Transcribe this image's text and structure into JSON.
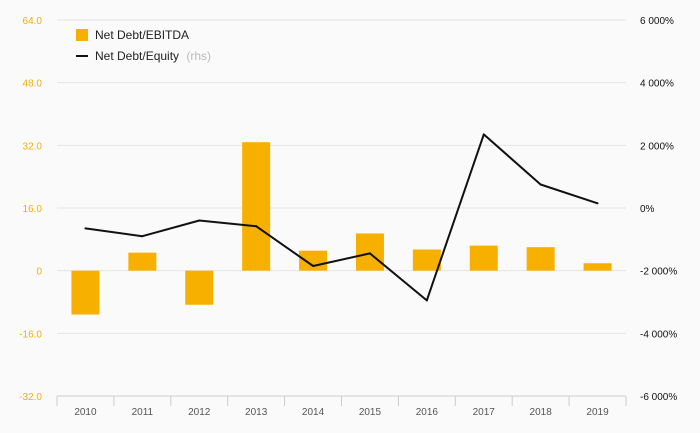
{
  "chart_data": {
    "type": "bar",
    "categories": [
      "2010",
      "2011",
      "2012",
      "2013",
      "2014",
      "2015",
      "2016",
      "2017",
      "2018",
      "2019"
    ],
    "series": [
      {
        "name": "Net Debt/EBITDA",
        "type": "bar",
        "axis": "left",
        "color": "#f8b000",
        "values": [
          -11.2,
          4.6,
          -8.7,
          32.8,
          5.1,
          9.5,
          5.4,
          6.4,
          6.0,
          1.9
        ]
      },
      {
        "name": "Net Debt/Equity",
        "name_suffix": "(rhs)",
        "type": "line",
        "axis": "right",
        "color": "#111111",
        "values": [
          -650,
          -900,
          -400,
          -580,
          -1850,
          -1450,
          -2950,
          2350,
          750,
          150
        ]
      }
    ],
    "y_left": {
      "ylim": [
        -32,
        64
      ],
      "ticks": [
        -32,
        -16,
        0,
        16,
        32,
        48,
        64
      ],
      "tick_labels": [
        "-32.0",
        "-16.0",
        "0",
        "16.0",
        "32.0",
        "48.0",
        "64.0"
      ]
    },
    "y_right": {
      "ylim": [
        -6000,
        6000
      ],
      "ticks": [
        -6000,
        -4000,
        -2000,
        0,
        2000,
        4000,
        6000
      ],
      "tick_labels": [
        "-6 000%",
        "-4 000%",
        "-2 000%",
        "0%",
        "2 000%",
        "4 000%",
        "6 000%"
      ]
    },
    "grid": true,
    "legend": "top-left"
  }
}
